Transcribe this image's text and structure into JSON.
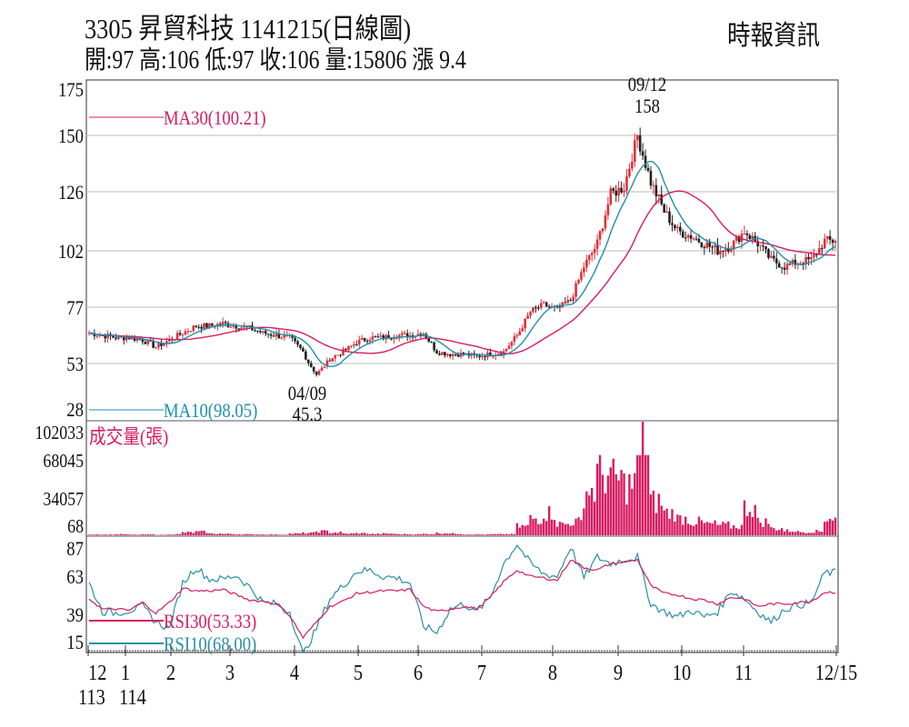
{
  "header": {
    "title": "3305  昇貿科技 1141215(日線圖)",
    "summary": "開:97 高:106 低:97 收:106 量:15806 漲 9.4",
    "source": "時報資訊"
  },
  "colors": {
    "up": "#e0303a",
    "down": "#222222",
    "ma30": "#d81b60",
    "ma10": "#1e90b0",
    "volume": "#d81b60",
    "rsi30": "#d81b60",
    "rsi10": "#2a8fa8",
    "grid": "#bbbbbb"
  },
  "chart_data": [
    {
      "type": "candlestick",
      "title": "price",
      "y_ticks": [
        "175",
        "150",
        "126",
        "102",
        "77",
        "53",
        "28"
      ],
      "legend": {
        "ma30": "MA30(100.21)",
        "ma10": "MA10(98.05)"
      },
      "annotations": {
        "high_date": "09/12",
        "high_value": "158",
        "low_date": "04/09",
        "low_value": "45.3"
      },
      "weekly_close": [
        66,
        65,
        64,
        64,
        63,
        60,
        63,
        66,
        69,
        69,
        70,
        69,
        68,
        66,
        65,
        64,
        58,
        47,
        55,
        58,
        62,
        64,
        64,
        65,
        65,
        66,
        58,
        57,
        57,
        56,
        57,
        58,
        65,
        75,
        78,
        76,
        80,
        95,
        105,
        125,
        128,
        150,
        130,
        118,
        110,
        108,
        105,
        102,
        104,
        110,
        105,
        98,
        95,
        97,
        98,
        106
      ]
    },
    {
      "type": "bar",
      "title": "成交量(張)",
      "y_ticks": [
        "102033",
        "68045",
        "34057",
        "68"
      ],
      "weekly_volume": [
        800,
        600,
        900,
        500,
        700,
        400,
        900,
        2500,
        3000,
        1500,
        1200,
        900,
        800,
        700,
        600,
        1500,
        2000,
        3500,
        2500,
        1500,
        1800,
        1200,
        1500,
        1000,
        900,
        1200,
        2000,
        1500,
        800,
        700,
        900,
        1000,
        8000,
        15000,
        20000,
        10000,
        12000,
        40000,
        55000,
        50000,
        45000,
        102033,
        30000,
        20000,
        15000,
        12000,
        10000,
        9000,
        8000,
        25000,
        12000,
        6000,
        4000,
        3000,
        3500,
        15806
      ]
    },
    {
      "type": "line",
      "title": "RSI",
      "y_ticks": [
        "87",
        "63",
        "39",
        "15"
      ],
      "legend": {
        "rsi30": "RSI30(53.33)",
        "rsi10": "RSI10(68.00)"
      },
      "rsi30": [
        48,
        40,
        40,
        39,
        45,
        37,
        45,
        56,
        54,
        54,
        55,
        51,
        47,
        46,
        44,
        35,
        18,
        30,
        42,
        46,
        52,
        53,
        54,
        54,
        55,
        42,
        38,
        40,
        42,
        40,
        49,
        61,
        70,
        65,
        64,
        62,
        78,
        72,
        70,
        75,
        76,
        78,
        58,
        52,
        51,
        48,
        47,
        44,
        49,
        48,
        42,
        44,
        44,
        45,
        46,
        53
      ],
      "rsi10": [
        60,
        38,
        37,
        39,
        42,
        30,
        25,
        60,
        72,
        63,
        63,
        66,
        57,
        45,
        44,
        38,
        5,
        25,
        48,
        58,
        69,
        70,
        65,
        64,
        60,
        27,
        22,
        40,
        44,
        38,
        49,
        75,
        90,
        75,
        67,
        65,
        88,
        64,
        80,
        75,
        78,
        80,
        44,
        38,
        34,
        39,
        34,
        38,
        54,
        48,
        38,
        30,
        40,
        43,
        45,
        68
      ]
    }
  ],
  "x_axis": {
    "labels": [
      "12",
      "1",
      "2",
      "3",
      "4",
      "5",
      "6",
      "7",
      "8",
      "9",
      "10",
      "11",
      "12/15"
    ],
    "year_labels": [
      "113",
      "114"
    ]
  }
}
